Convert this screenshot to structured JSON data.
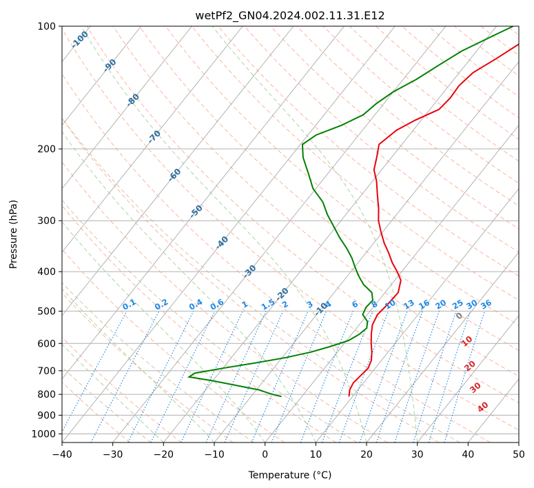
{
  "chart_data": {
    "type": "skew-t",
    "title": "wetPf2_GN04.2024.002.11.31.E12",
    "xlabel": "Temperature (°C)",
    "ylabel": "Pressure (hPa)",
    "xlim": [
      -40,
      50
    ],
    "ylim": [
      1050,
      100
    ],
    "x_ticks": [
      "−40",
      "−30",
      "−20",
      "−10",
      "0",
      "10",
      "20",
      "30",
      "40",
      "50"
    ],
    "y_ticks": [
      "100",
      "200",
      "300",
      "400",
      "500",
      "600",
      "700",
      "800",
      "900",
      "1000"
    ],
    "grid": true,
    "series": [
      {
        "color": "#e8000b",
        "points": [
          [
            810,
            9.3
          ],
          [
            780,
            8.4
          ],
          [
            750,
            8.0
          ],
          [
            720,
            8.3
          ],
          [
            690,
            8.6
          ],
          [
            660,
            8.0
          ],
          [
            630,
            6.8
          ],
          [
            600,
            5.3
          ],
          [
            570,
            3.9
          ],
          [
            540,
            2.6
          ],
          [
            510,
            2.0
          ],
          [
            480,
            2.4
          ],
          [
            450,
            2.6
          ],
          [
            420,
            1.2
          ],
          [
            400,
            -0.9
          ],
          [
            380,
            -3.3
          ],
          [
            360,
            -5.5
          ],
          [
            340,
            -8.0
          ],
          [
            320,
            -10.3
          ],
          [
            300,
            -12.6
          ],
          [
            280,
            -14.5
          ],
          [
            260,
            -16.8
          ],
          [
            240,
            -19.2
          ],
          [
            225,
            -21.5
          ],
          [
            210,
            -22.9
          ],
          [
            195,
            -24.5
          ],
          [
            180,
            -23.3
          ],
          [
            170,
            -21.2
          ],
          [
            160,
            -18.2
          ],
          [
            150,
            -17.8
          ],
          [
            140,
            -18.0
          ],
          [
            130,
            -17.3
          ],
          [
            120,
            -14.9
          ],
          [
            110,
            -12.6
          ],
          [
            100,
            -11.4
          ]
        ]
      },
      {
        "color": "#008000",
        "points": [
          [
            810,
            -4.0
          ],
          [
            800,
            -6.2
          ],
          [
            780,
            -9.5
          ],
          [
            760,
            -14.8
          ],
          [
            740,
            -20.3
          ],
          [
            725,
            -25.3
          ],
          [
            710,
            -24.8
          ],
          [
            690,
            -20.0
          ],
          [
            670,
            -14.5
          ],
          [
            650,
            -9.3
          ],
          [
            630,
            -5.2
          ],
          [
            610,
            -2.2
          ],
          [
            590,
            0.4
          ],
          [
            570,
            1.5
          ],
          [
            550,
            2.0
          ],
          [
            530,
            1.1
          ],
          [
            510,
            -0.9
          ],
          [
            490,
            -1.4
          ],
          [
            470,
            -1.2
          ],
          [
            450,
            -2.6
          ],
          [
            430,
            -5.5
          ],
          [
            410,
            -7.8
          ],
          [
            390,
            -9.9
          ],
          [
            370,
            -12.0
          ],
          [
            350,
            -14.6
          ],
          [
            330,
            -17.6
          ],
          [
            310,
            -20.5
          ],
          [
            290,
            -23.6
          ],
          [
            270,
            -26.5
          ],
          [
            250,
            -30.6
          ],
          [
            230,
            -33.8
          ],
          [
            210,
            -37.4
          ],
          [
            195,
            -39.6
          ],
          [
            185,
            -38.4
          ],
          [
            175,
            -34.9
          ],
          [
            165,
            -32.3
          ],
          [
            155,
            -31.5
          ],
          [
            145,
            -30.0
          ],
          [
            135,
            -27.4
          ],
          [
            125,
            -25.3
          ],
          [
            115,
            -22.9
          ],
          [
            105,
            -18.9
          ],
          [
            100,
            -16.7
          ]
        ]
      }
    ],
    "isotherm_labels": [
      "-100",
      "-90",
      "-80",
      "-70",
      "-60",
      "-50",
      "-40",
      "-30",
      "-20",
      "-10"
    ],
    "mixing_ratio_labels": [
      "0.1",
      "0.2",
      "0.4",
      "0.6",
      "1",
      "1.5",
      "2",
      "3",
      "4",
      "6",
      "8",
      "10",
      "13",
      "16",
      "20",
      "25",
      "30",
      "36"
    ],
    "theta_e_labels": [
      "0",
      "10",
      "20",
      "30",
      "40"
    ],
    "colors": {
      "temperature": "#e8000b",
      "dewpoint": "#008000",
      "isotherm_label": "#2f6f9f",
      "mixing_ratio": "#1e88e5",
      "theta_e_label": "#d62728",
      "theta_e_zero": "#7f7f7f",
      "dry_adiabat": "#fbb49c",
      "moist_adiabat": "#a9d4a0",
      "dry_adiabat_old": "#d8c3a5",
      "grid": "#b0b0b0"
    }
  }
}
